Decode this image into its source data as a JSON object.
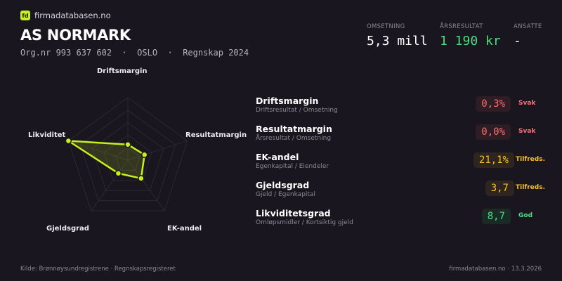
{
  "brand": {
    "logo_mark": "fd",
    "site": "firmadatabasen.no",
    "accent": "#c6f01a"
  },
  "company": {
    "name": "AS NORMARK",
    "subtitle": "Org.nr 993 637 602  ·  OSLO  ·  Regnskap 2024"
  },
  "kpis": [
    {
      "label": "OMSETNING",
      "value": "5,3 mill",
      "color": "#ffffff"
    },
    {
      "label": "ÅRSRESULTAT",
      "value": "1 190 kr",
      "color": "#4ade80"
    },
    {
      "label": "ANSATTE",
      "value": "-",
      "color": "#ffffff"
    }
  ],
  "radar": {
    "axes": [
      "Driftsmargin",
      "Resultatmargin",
      "EK-andel",
      "Gjeldsgrad",
      "Likviditet"
    ],
    "scores": [
      0.25,
      0.28,
      0.36,
      0.26,
      1.0
    ],
    "rings": 5
  },
  "metrics": [
    {
      "name": "Driftsmargin",
      "formula": "Driftsresultat / Omsetning",
      "value": "0,3%",
      "status": "Svak",
      "color": "#f87171",
      "bg": "#2e1d24"
    },
    {
      "name": "Resultatmargin",
      "formula": "Årsresultat / Omsetning",
      "value": "0,0%",
      "status": "Svak",
      "color": "#f87171",
      "bg": "#2e1d24"
    },
    {
      "name": "EK-andel",
      "formula": "Egenkapital / Eiendeler",
      "value": "21,1%",
      "status": "Tilfreds.",
      "color": "#fbbf24",
      "bg": "#2e2420"
    },
    {
      "name": "Gjeldsgrad",
      "formula": "Gjeld / Egenkapital",
      "value": "3,7",
      "status": "Tilfreds.",
      "color": "#fbbf24",
      "bg": "#2e2420"
    },
    {
      "name": "Likviditetsgrad",
      "formula": "Omløpsmidler / Kortsiktig gjeld",
      "value": "8,7",
      "status": "God",
      "color": "#4ade80",
      "bg": "#1a2b25"
    }
  ],
  "footer": {
    "source": "Kilde: Brønnøysundregistrene · Regnskapsregisteret",
    "site_date": "firmadatabasen.no · 13.3.2026"
  }
}
